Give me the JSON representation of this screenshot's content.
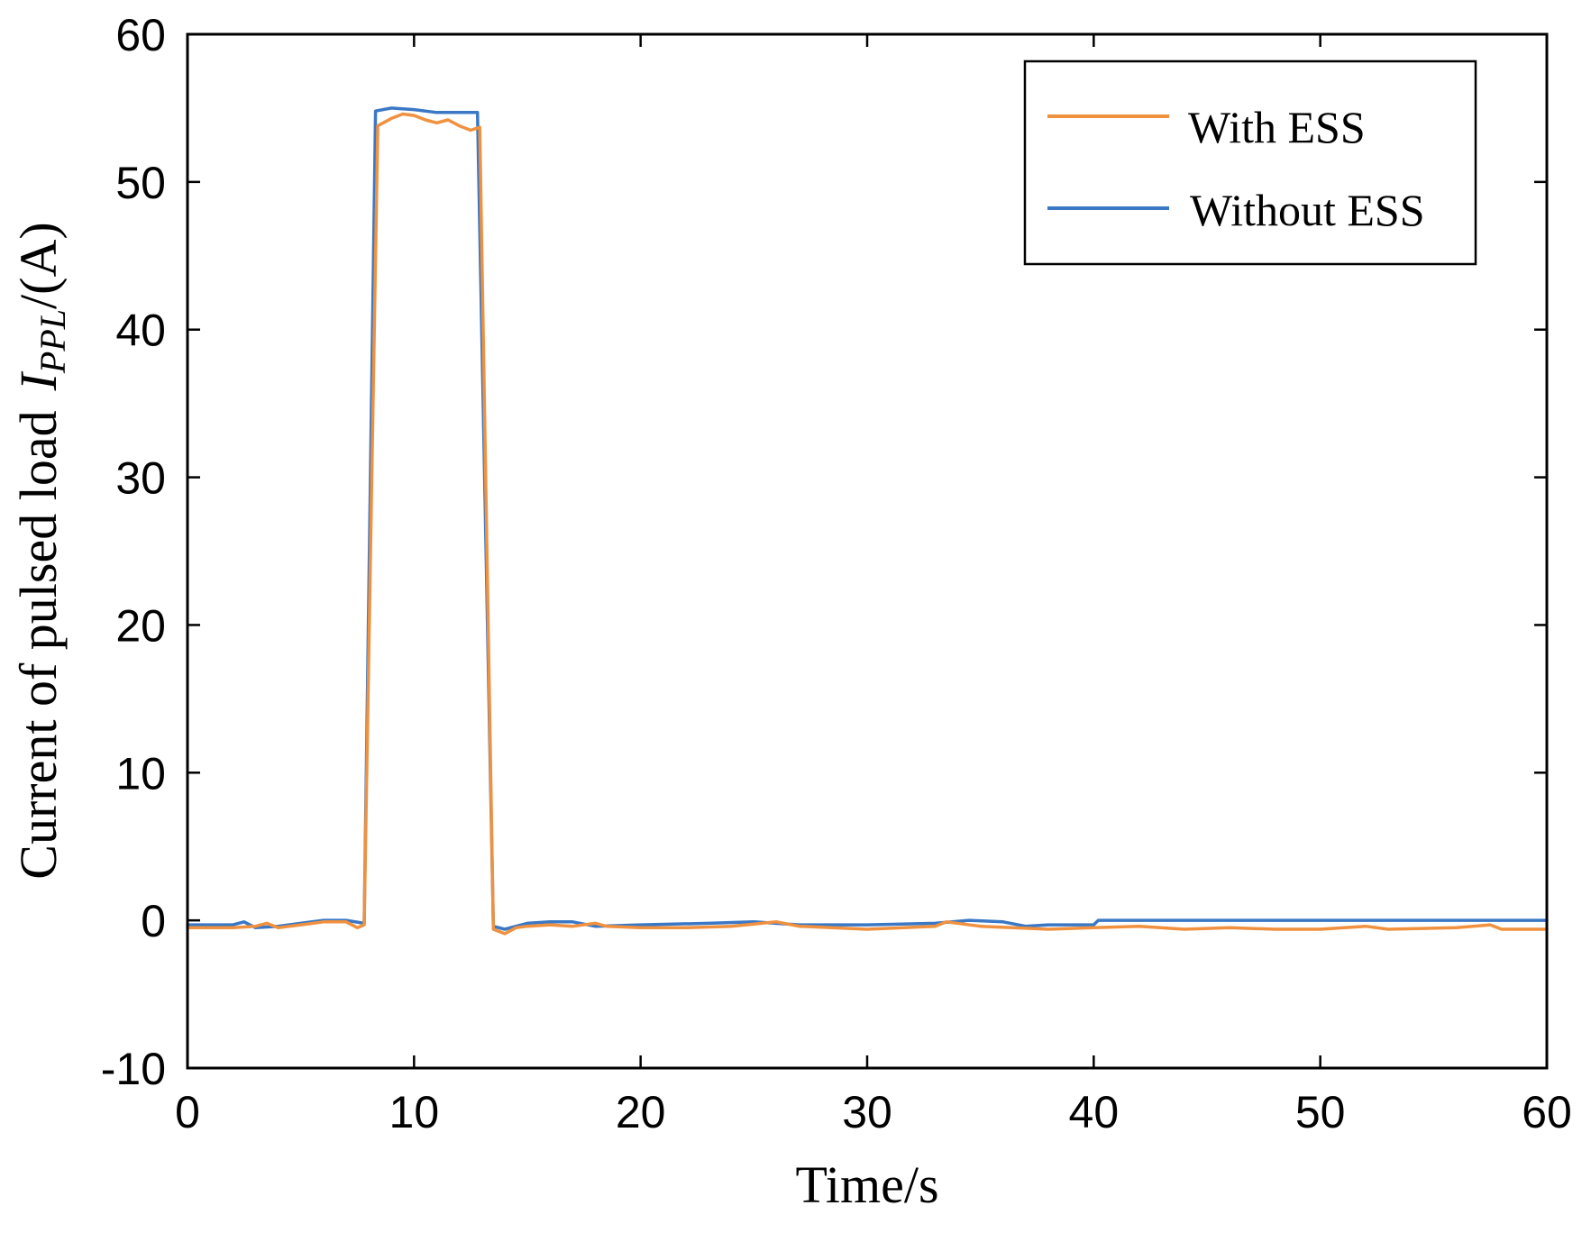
{
  "chart_data": {
    "type": "line",
    "xlabel": "Time/s",
    "ylabel": {
      "main": "Current of pulsed load",
      "symbol": "I",
      "subscript": "PPL",
      "unit": "/(A)"
    },
    "xlim": [
      0,
      60
    ],
    "ylim": [
      -10,
      60
    ],
    "xticks": [
      "0",
      "10",
      "20",
      "30",
      "40",
      "50",
      "60"
    ],
    "yticks": [
      "-10",
      "0",
      "10",
      "20",
      "30",
      "40",
      "50",
      "60"
    ],
    "grid": false,
    "legend_position": "top-right",
    "series": [
      {
        "name": "With ESS",
        "color": "#F0913F",
        "points": [
          [
            0,
            -0.5
          ],
          [
            2,
            -0.5
          ],
          [
            3,
            -0.4
          ],
          [
            3.5,
            -0.2
          ],
          [
            4,
            -0.5
          ],
          [
            5,
            -0.3
          ],
          [
            6,
            -0.1
          ],
          [
            7,
            -0.1
          ],
          [
            7.5,
            -0.5
          ],
          [
            7.8,
            -0.3
          ],
          [
            8.4,
            53.8
          ],
          [
            9,
            54.3
          ],
          [
            9.5,
            54.6
          ],
          [
            10,
            54.5
          ],
          [
            10.5,
            54.2
          ],
          [
            11,
            54.0
          ],
          [
            11.5,
            54.2
          ],
          [
            12,
            53.8
          ],
          [
            12.5,
            53.5
          ],
          [
            12.9,
            53.7
          ],
          [
            13.5,
            -0.6
          ],
          [
            14,
            -0.9
          ],
          [
            14.5,
            -0.5
          ],
          [
            15,
            -0.4
          ],
          [
            16,
            -0.3
          ],
          [
            17,
            -0.4
          ],
          [
            18,
            -0.2
          ],
          [
            18.5,
            -0.4
          ],
          [
            20,
            -0.5
          ],
          [
            22,
            -0.5
          ],
          [
            24,
            -0.4
          ],
          [
            26,
            -0.1
          ],
          [
            27,
            -0.4
          ],
          [
            30,
            -0.6
          ],
          [
            33,
            -0.4
          ],
          [
            33.5,
            -0.1
          ],
          [
            35,
            -0.4
          ],
          [
            38,
            -0.6
          ],
          [
            40,
            -0.5
          ],
          [
            42,
            -0.4
          ],
          [
            44,
            -0.6
          ],
          [
            46,
            -0.5
          ],
          [
            48,
            -0.6
          ],
          [
            50,
            -0.6
          ],
          [
            52,
            -0.4
          ],
          [
            53,
            -0.6
          ],
          [
            56,
            -0.5
          ],
          [
            57.5,
            -0.3
          ],
          [
            58,
            -0.6
          ],
          [
            60,
            -0.6
          ]
        ]
      },
      {
        "name": "Without ESS",
        "color": "#3A78C6",
        "points": [
          [
            0,
            -0.3
          ],
          [
            2,
            -0.3
          ],
          [
            2.5,
            -0.1
          ],
          [
            3,
            -0.5
          ],
          [
            4,
            -0.4
          ],
          [
            5,
            -0.2
          ],
          [
            6,
            0.0
          ],
          [
            7,
            0.0
          ],
          [
            7.8,
            -0.2
          ],
          [
            8.3,
            54.8
          ],
          [
            9,
            55.0
          ],
          [
            10,
            54.9
          ],
          [
            11,
            54.7
          ],
          [
            12,
            54.7
          ],
          [
            12.8,
            54.7
          ],
          [
            13.5,
            -0.4
          ],
          [
            14,
            -0.6
          ],
          [
            15,
            -0.2
          ],
          [
            16,
            -0.1
          ],
          [
            17,
            -0.1
          ],
          [
            18,
            -0.4
          ],
          [
            20,
            -0.3
          ],
          [
            23,
            -0.2
          ],
          [
            25,
            -0.1
          ],
          [
            27,
            -0.3
          ],
          [
            30,
            -0.3
          ],
          [
            33,
            -0.2
          ],
          [
            34.5,
            0.0
          ],
          [
            36,
            -0.1
          ],
          [
            37,
            -0.4
          ],
          [
            38,
            -0.3
          ],
          [
            40,
            -0.3
          ],
          [
            40.2,
            0.0
          ],
          [
            44,
            0.0
          ],
          [
            50,
            0.0
          ],
          [
            55,
            0.0
          ],
          [
            60,
            0.0
          ]
        ]
      }
    ]
  }
}
